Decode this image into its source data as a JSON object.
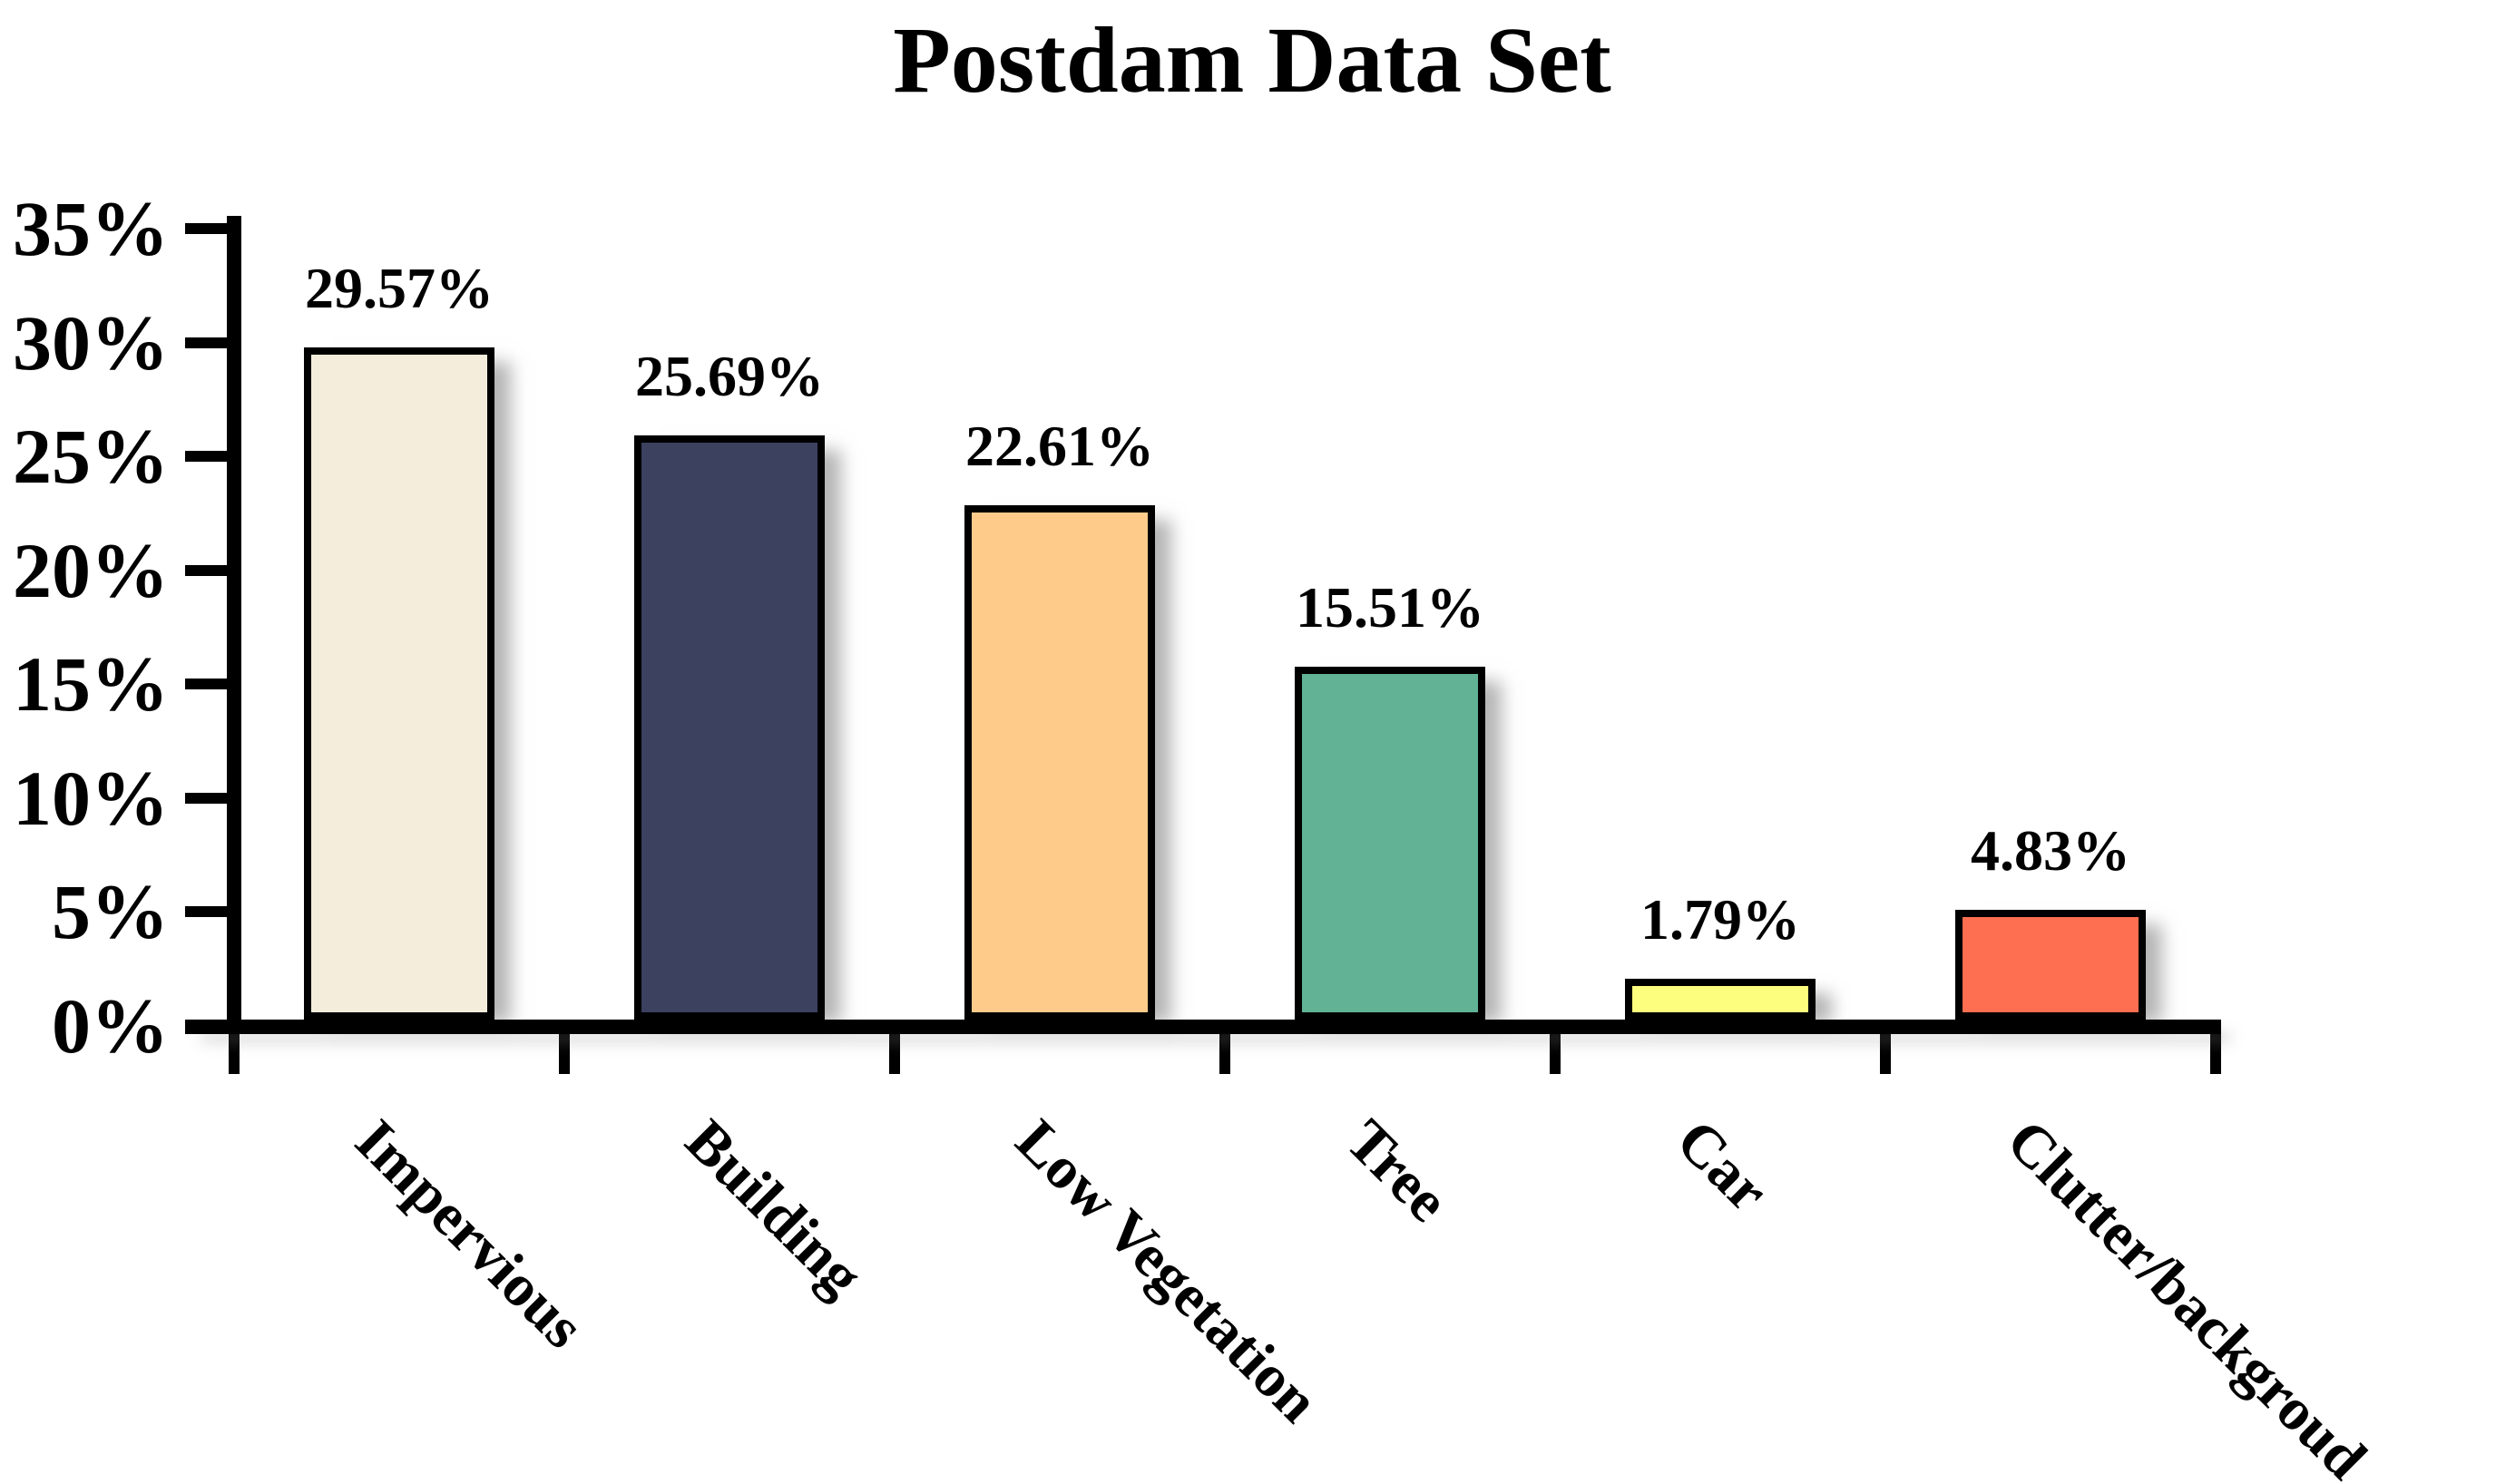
{
  "chart_data": {
    "type": "bar",
    "title": "Postdam Data Set",
    "categories": [
      "Impervious",
      "Building",
      "Low Vegetation",
      "Tree",
      "Car",
      "Clutter/backgroud"
    ],
    "values": [
      29.57,
      25.69,
      22.61,
      15.51,
      1.79,
      4.83
    ],
    "value_labels": [
      "29.57%",
      "25.69%",
      "22.61%",
      "15.51%",
      "1.79%",
      "4.83%"
    ],
    "bar_colors": [
      "#f4eddc",
      "#3c4160",
      "#fecb8b",
      "#62b296",
      "#fdfd7e",
      "#fe6e50"
    ],
    "bar_border_color": "#000000",
    "axis_color": "#000000",
    "text_color": "#000000",
    "xlabel": "",
    "ylabel": "",
    "ylim": [
      0,
      35
    ],
    "yticks": [
      0,
      5,
      10,
      15,
      20,
      25,
      30,
      35
    ],
    "ytick_labels": [
      "0%",
      "5%",
      "10%",
      "15%",
      "20%",
      "25%",
      "30%",
      "35%"
    ],
    "x_label_rotation_deg": 45,
    "grid": false,
    "legend": "none"
  }
}
